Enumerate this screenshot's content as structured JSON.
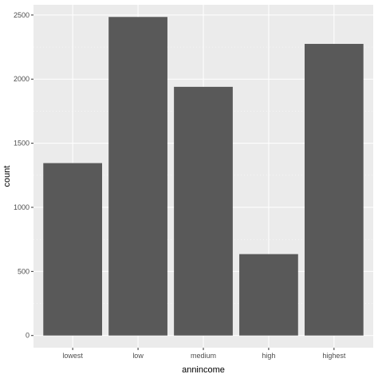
{
  "chart_data": {
    "type": "bar",
    "title": "",
    "xlabel": "annincome",
    "ylabel": "count",
    "categories": [
      "lowest",
      "low",
      "medium",
      "high",
      "highest"
    ],
    "values": [
      1345,
      2485,
      1940,
      635,
      2275
    ],
    "ylim": [
      -95,
      2580
    ],
    "yticks": [
      0,
      500,
      1000,
      1500,
      2000,
      2500
    ],
    "grid": true,
    "legend": "none",
    "colors": {
      "bar": "#595959",
      "panel": "#ebebeb",
      "grid_major": "#ffffff",
      "tick_text": "#4d4d4d",
      "title_text": "#000000"
    }
  }
}
